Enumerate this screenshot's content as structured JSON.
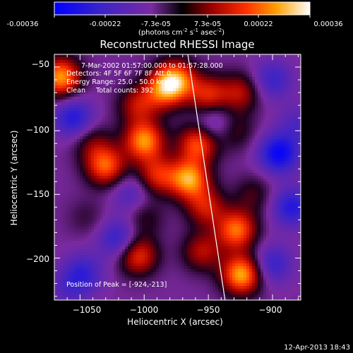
{
  "colorbar": {
    "tick_labels": [
      "-0.00036",
      "-0.00022",
      "-7.3e-05",
      "7.3e-05",
      "0.00022",
      "0.00036"
    ],
    "units_text": "(photons cm",
    "units_exp1": "-2",
    "units_mid": " s",
    "units_exp2": "-1",
    "units_end": " asec",
    "units_exp3": "-2",
    "units_close": ")"
  },
  "chart_data": {
    "type": "heatmap",
    "title": "Reconstructed RHESSI Image",
    "xlabel": "Heliocentric X (arcsec)",
    "ylabel": "Heliocentric Y (arcsec)",
    "xlim": [
      -1070,
      -878
    ],
    "ylim": [
      -233,
      -40
    ],
    "x_ticks": [
      -1050,
      -1000,
      -950,
      -900
    ],
    "y_ticks": [
      -50,
      -100,
      -150,
      -200
    ],
    "x_tick_labels": [
      "−1050",
      "−1000",
      "−950",
      "−900"
    ],
    "y_tick_labels": [
      "−50",
      "−100",
      "−150",
      "−200"
    ],
    "color_range": [
      -0.00036,
      0.00036
    ],
    "blobs": [
      {
        "x": -1065,
        "y": -58,
        "v": 0.00034
      },
      {
        "x": -1040,
        "y": -110,
        "v": 0.00012
      },
      {
        "x": -1005,
        "y": -80,
        "v": 0.00018
      },
      {
        "x": -985,
        "y": -68,
        "v": 0.00024
      },
      {
        "x": -975,
        "y": -60,
        "v": 0.0003
      },
      {
        "x": -950,
        "y": -72,
        "v": 0.00022
      },
      {
        "x": -925,
        "y": -70,
        "v": 0.00018
      },
      {
        "x": -1000,
        "y": -108,
        "v": 0.00033
      },
      {
        "x": -958,
        "y": -110,
        "v": 0.00028
      },
      {
        "x": -930,
        "y": -100,
        "v": 0.00012
      },
      {
        "x": -1030,
        "y": -128,
        "v": 0.00028
      },
      {
        "x": -990,
        "y": -135,
        "v": 0.00022
      },
      {
        "x": -965,
        "y": -138,
        "v": 0.00034
      },
      {
        "x": -1045,
        "y": -168,
        "v": 6e-05
      },
      {
        "x": -1000,
        "y": -168,
        "v": 0.0001
      },
      {
        "x": -952,
        "y": -160,
        "v": 0.0002
      },
      {
        "x": -915,
        "y": -150,
        "v": 0.0001
      },
      {
        "x": -928,
        "y": -178,
        "v": 0.0003
      },
      {
        "x": -1005,
        "y": -198,
        "v": 0.00025
      },
      {
        "x": -955,
        "y": -195,
        "v": 0.00018
      },
      {
        "x": -924,
        "y": -213,
        "v": 0.00036
      },
      {
        "x": -1055,
        "y": -90,
        "v": -0.0002
      },
      {
        "x": -1020,
        "y": -185,
        "v": -0.00018
      },
      {
        "x": -1048,
        "y": -212,
        "v": -0.00016
      },
      {
        "x": -895,
        "y": -118,
        "v": -0.00026
      },
      {
        "x": -885,
        "y": -160,
        "v": -0.0002
      },
      {
        "x": -900,
        "y": -205,
        "v": -0.00016
      },
      {
        "x": -945,
        "y": -95,
        "v": -0.00014
      },
      {
        "x": -1010,
        "y": -150,
        "v": -0.00012
      },
      {
        "x": -900,
        "y": -60,
        "v": -0.00015
      },
      {
        "x": -880,
        "y": -95,
        "v": -0.0001
      },
      {
        "x": -1060,
        "y": -225,
        "v": -8e-05
      }
    ],
    "limb": [
      [
        -966,
        -40
      ],
      [
        -937,
        -233
      ]
    ],
    "annotations": {
      "line1": "7-Mar-2002 01:57:00.000 to 01:57:28.000",
      "line2": "Detectors: 4F 5F 6F 7F 8F  Att 0",
      "line3": "Energy Range: 25.0 - 50.0 keV",
      "line4": "Clean     Total counts: 392",
      "peak": "Position of Peak = [-924,-213]"
    }
  },
  "timestamp": "12-Apr-2013 18:43"
}
